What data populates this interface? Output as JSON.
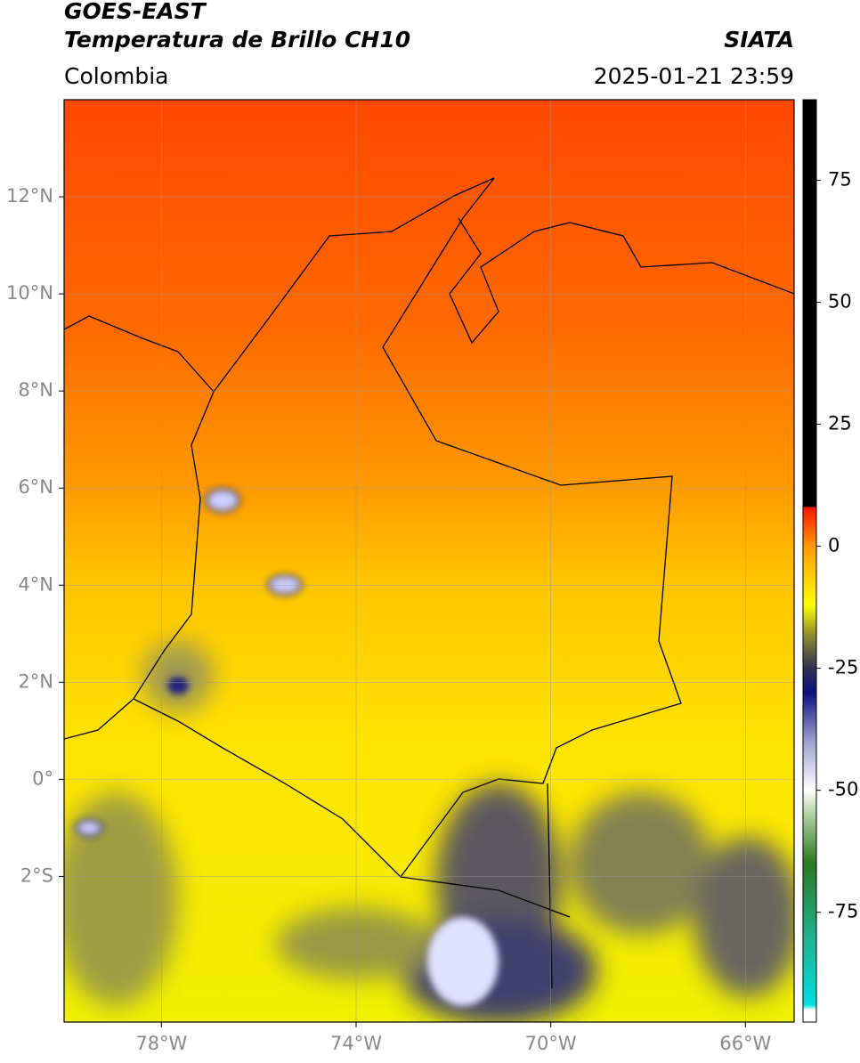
{
  "map": {
    "title": "GOES-EAST",
    "subtitle": "Temperatura de Brillo CH10",
    "source": "SIATA",
    "region": "Colombia",
    "datetime": "2025-01-21 23:59",
    "xlim": [
      -80,
      -65
    ],
    "ylim": [
      -5,
      14
    ],
    "xticks": [
      {
        "value": -78,
        "label": "78°W"
      },
      {
        "value": -74,
        "label": "74°W"
      },
      {
        "value": -70,
        "label": "70°W"
      },
      {
        "value": -66,
        "label": "66°W"
      }
    ],
    "yticks": [
      {
        "value": 12,
        "label": "12°N"
      },
      {
        "value": 10,
        "label": "10°N"
      },
      {
        "value": 8,
        "label": "8°N"
      },
      {
        "value": 6,
        "label": "6°N"
      },
      {
        "value": 4,
        "label": "4°N"
      },
      {
        "value": 2,
        "label": "2°N"
      },
      {
        "value": 0,
        "label": "0°"
      },
      {
        "value": -2,
        "label": "2°S"
      }
    ],
    "grid": true,
    "colorbar": {
      "lim": [
        -97.5,
        91.5
      ],
      "ticks": [
        75,
        50,
        25,
        0,
        -25,
        -50,
        -75
      ],
      "colormap": [
        {
          "value": -97.5,
          "color": "#ffffff"
        },
        {
          "value": -95,
          "color": "#ffffff"
        },
        {
          "value": -94,
          "color": "#00e0e0"
        },
        {
          "value": -80,
          "color": "#20b090"
        },
        {
          "value": -65,
          "color": "#2a7a20"
        },
        {
          "value": -55,
          "color": "#b0d0a0"
        },
        {
          "value": -50,
          "color": "#ffffff"
        },
        {
          "value": -40,
          "color": "#a0a0d0"
        },
        {
          "value": -30,
          "color": "#101080"
        },
        {
          "value": -25,
          "color": "#303050"
        },
        {
          "value": -18,
          "color": "#909030"
        },
        {
          "value": -12,
          "color": "#ffff00"
        },
        {
          "value": 0,
          "color": "#ff9a00"
        },
        {
          "value": 8,
          "color": "#ff1000"
        },
        {
          "value": 8.1,
          "color": "#000000"
        },
        {
          "value": 91.5,
          "color": "#000000"
        }
      ]
    }
  }
}
